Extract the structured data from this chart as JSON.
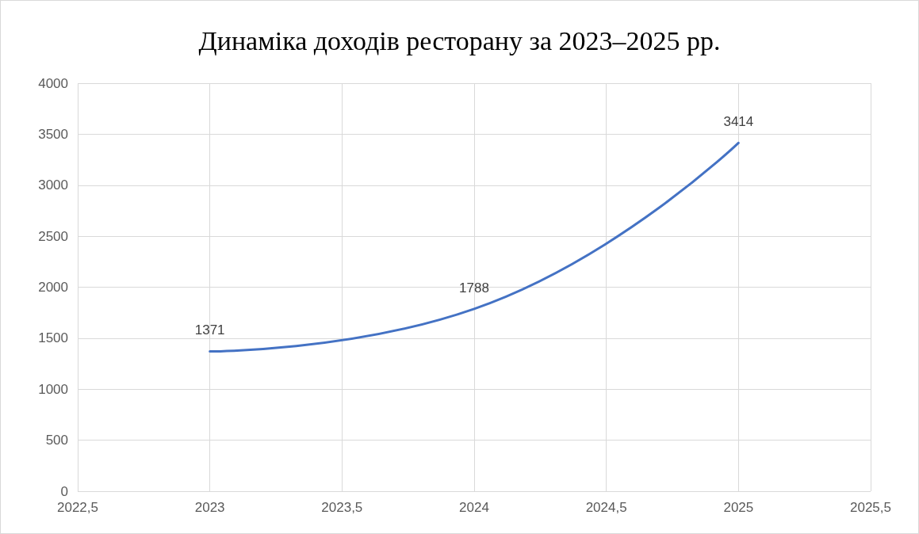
{
  "chart_data": {
    "type": "line",
    "title": "Динаміка доходів ресторану за 2023–2025 рр.",
    "x": [
      2023,
      2024,
      2025
    ],
    "series": [
      {
        "color": "#4472c4",
        "values": [
          1371,
          1788,
          3414
        ]
      }
    ],
    "xlim": [
      2022.5,
      2025.5
    ],
    "xticks": [
      {
        "value": 2022.5,
        "label": "2022,5"
      },
      2023,
      {
        "value": 2023.5,
        "label": "2023,5"
      },
      2024,
      {
        "value": 2024.5,
        "label": "2024,5"
      },
      2025,
      {
        "value": 2025.5,
        "label": "2025,5"
      }
    ],
    "ylim": [
      0,
      4000
    ],
    "yticks": [
      0,
      500,
      1000,
      1500,
      2000,
      2500,
      3000,
      3500,
      4000
    ],
    "grid": true,
    "data_labels": true,
    "marker": "none",
    "line_style": "solid"
  }
}
